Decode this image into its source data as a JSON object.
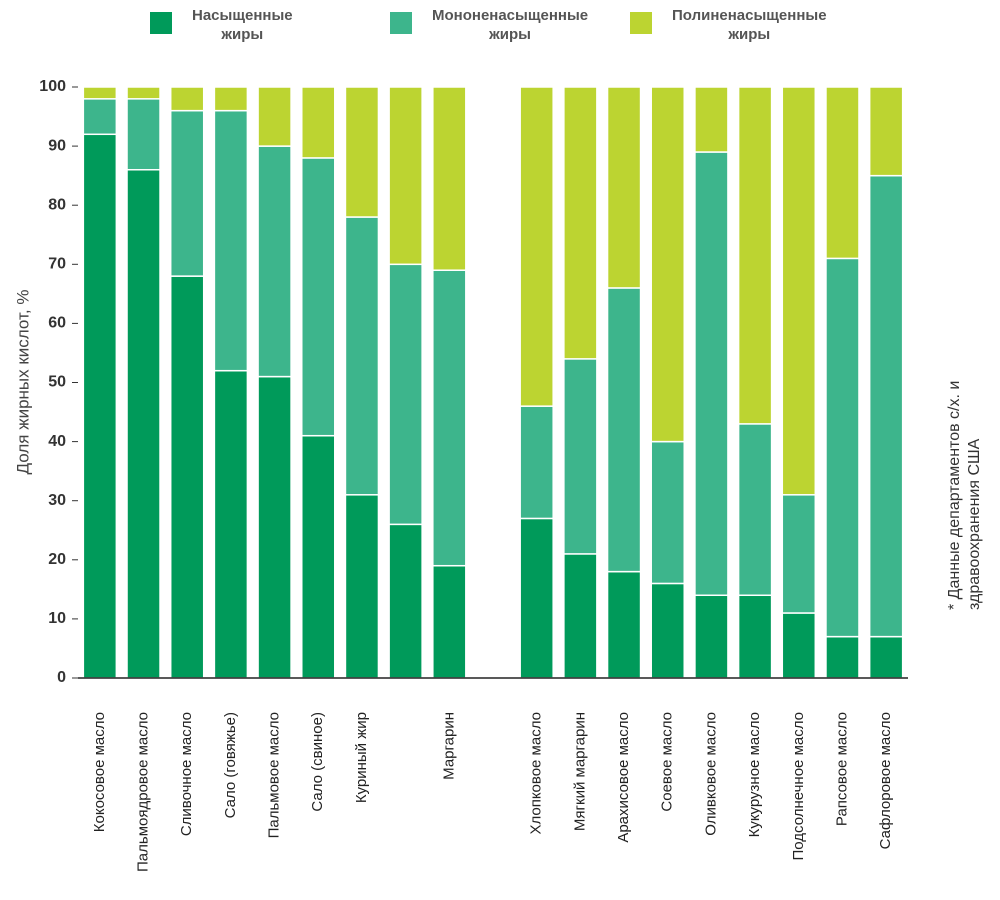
{
  "chart_data": {
    "type": "stacked_bar",
    "categories": [
      "Кокосовое масло",
      "Пальмоядровое масло",
      "Сливочное масло",
      "Сало (говяжье)",
      "Пальмовое масло",
      "Сало (свиное)",
      "Куриный жир",
      null,
      "Маргарин",
      null,
      "Хлопковое масло",
      "Мягкий маргарин",
      "Арахисовое масло",
      "Соевое масло",
      "Оливковое масло",
      "Кукурузное масло",
      "Подсолнечное масло",
      "Рапсовое масло",
      "Сафлоровое масло"
    ],
    "series": [
      {
        "name": "Насыщенные\nжиры",
        "color": "#009a5a",
        "values": [
          92,
          86,
          68,
          52,
          51,
          41,
          31,
          26,
          19,
          null,
          27,
          21,
          18,
          16,
          14,
          14,
          11,
          7,
          7
        ]
      },
      {
        "name": "Мононенасыщенные\nжиры",
        "color": "#3db58c",
        "values": [
          6,
          12,
          28,
          44,
          39,
          47,
          47,
          44,
          50,
          null,
          19,
          33,
          48,
          24,
          75,
          29,
          20,
          64,
          78
        ]
      },
      {
        "name": "Полиненасыщенные\nжиры",
        "color": "#bcd431",
        "values": [
          2,
          2,
          4,
          4,
          10,
          12,
          22,
          30,
          31,
          null,
          54,
          46,
          34,
          60,
          11,
          57,
          69,
          29,
          15
        ]
      }
    ],
    "y_label": "Доля жирных кислот, %",
    "note": "* Данные департаментов с/х. и\nздравоохранения США",
    "ylim": [
      0,
      100
    ],
    "yticks": [
      0,
      10,
      20,
      30,
      40,
      50,
      60,
      70,
      80,
      90,
      100
    ],
    "grid": false
  }
}
